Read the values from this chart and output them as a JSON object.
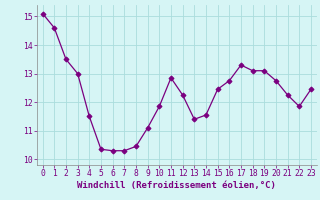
{
  "x": [
    0,
    1,
    2,
    3,
    4,
    5,
    6,
    7,
    8,
    9,
    10,
    11,
    12,
    13,
    14,
    15,
    16,
    17,
    18,
    19,
    20,
    21,
    22,
    23
  ],
  "y": [
    15.1,
    14.6,
    13.5,
    13.0,
    11.5,
    10.35,
    10.3,
    10.3,
    10.45,
    11.1,
    11.85,
    12.85,
    12.25,
    11.4,
    11.55,
    12.45,
    12.75,
    13.3,
    13.1,
    13.1,
    12.75,
    12.25,
    11.85,
    12.45
  ],
  "line_color": "#7B0080",
  "marker": "D",
  "marker_size": 2.5,
  "bg_color": "#d6f5f5",
  "grid_color": "#aadddd",
  "xlabel": "Windchill (Refroidissement éolien,°C)",
  "xlabel_fontsize": 6.5,
  "tick_fontsize": 5.8,
  "xlim": [
    -0.5,
    23.5
  ],
  "ylim": [
    9.8,
    15.4
  ],
  "yticks": [
    10,
    11,
    12,
    13,
    14,
    15
  ],
  "xticks": [
    0,
    1,
    2,
    3,
    4,
    5,
    6,
    7,
    8,
    9,
    10,
    11,
    12,
    13,
    14,
    15,
    16,
    17,
    18,
    19,
    20,
    21,
    22,
    23
  ]
}
